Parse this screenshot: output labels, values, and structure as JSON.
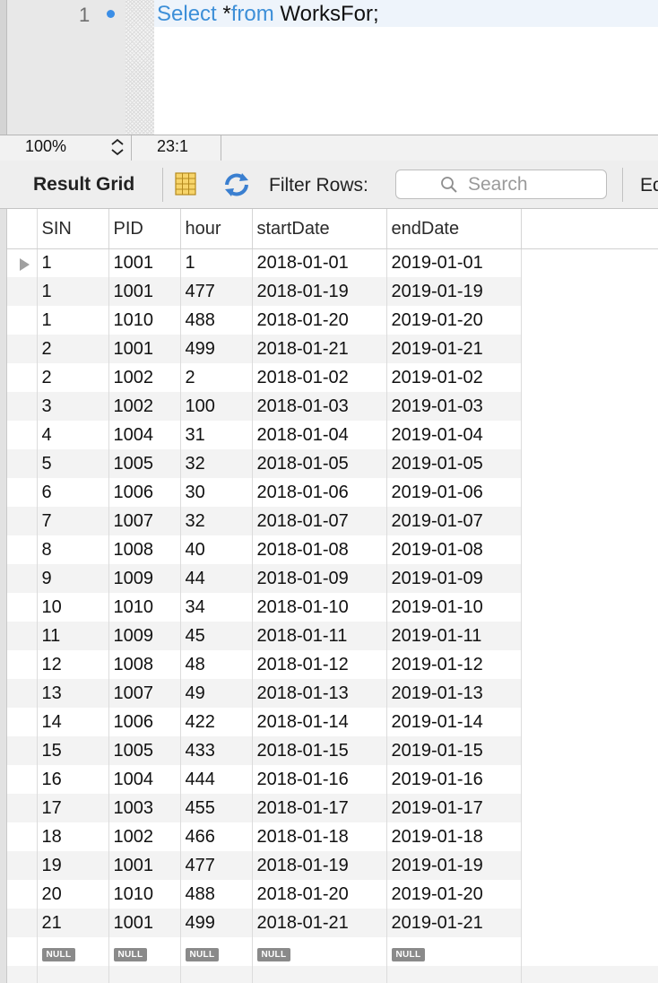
{
  "editor": {
    "line_number": "1",
    "sql": {
      "kw1": "Select",
      "mid": " *",
      "kw2": "from",
      "table": " WorksFor;"
    }
  },
  "status": {
    "zoom": "100%",
    "cursor": "23:1"
  },
  "toolbar": {
    "title": "Result Grid",
    "filter_label": "Filter Rows:",
    "search_placeholder": "Search",
    "edit_label": "Ed"
  },
  "grid": {
    "columns": [
      "SIN",
      "PID",
      "hour",
      "startDate",
      "endDate"
    ],
    "rows": [
      [
        "1",
        "1001",
        "1",
        "2018-01-01",
        "2019-01-01"
      ],
      [
        "1",
        "1001",
        "477",
        "2018-01-19",
        "2019-01-19"
      ],
      [
        "1",
        "1010",
        "488",
        "2018-01-20",
        "2019-01-20"
      ],
      [
        "2",
        "1001",
        "499",
        "2018-01-21",
        "2019-01-21"
      ],
      [
        "2",
        "1002",
        "2",
        "2018-01-02",
        "2019-01-02"
      ],
      [
        "3",
        "1002",
        "100",
        "2018-01-03",
        "2019-01-03"
      ],
      [
        "4",
        "1004",
        "31",
        "2018-01-04",
        "2019-01-04"
      ],
      [
        "5",
        "1005",
        "32",
        "2018-01-05",
        "2019-01-05"
      ],
      [
        "6",
        "1006",
        "30",
        "2018-01-06",
        "2019-01-06"
      ],
      [
        "7",
        "1007",
        "32",
        "2018-01-07",
        "2019-01-07"
      ],
      [
        "8",
        "1008",
        "40",
        "2018-01-08",
        "2019-01-08"
      ],
      [
        "9",
        "1009",
        "44",
        "2018-01-09",
        "2019-01-09"
      ],
      [
        "10",
        "1010",
        "34",
        "2018-01-10",
        "2019-01-10"
      ],
      [
        "11",
        "1009",
        "45",
        "2018-01-11",
        "2019-01-11"
      ],
      [
        "12",
        "1008",
        "48",
        "2018-01-12",
        "2019-01-12"
      ],
      [
        "13",
        "1007",
        "49",
        "2018-01-13",
        "2019-01-13"
      ],
      [
        "14",
        "1006",
        "422",
        "2018-01-14",
        "2019-01-14"
      ],
      [
        "15",
        "1005",
        "433",
        "2018-01-15",
        "2019-01-15"
      ],
      [
        "16",
        "1004",
        "444",
        "2018-01-16",
        "2019-01-16"
      ],
      [
        "17",
        "1003",
        "455",
        "2018-01-17",
        "2019-01-17"
      ],
      [
        "18",
        "1002",
        "466",
        "2018-01-18",
        "2019-01-18"
      ],
      [
        "19",
        "1001",
        "477",
        "2018-01-19",
        "2019-01-19"
      ],
      [
        "20",
        "1010",
        "488",
        "2018-01-20",
        "2019-01-20"
      ],
      [
        "21",
        "1001",
        "499",
        "2018-01-21",
        "2019-01-21"
      ]
    ],
    "null_label": "NULL",
    "selected_row": 0
  },
  "icons": {
    "row_marker": "row-arrow-icon",
    "grid": "grid-columns-icon",
    "refresh": "refresh-icon",
    "search": "search-icon",
    "zoom_stepper": "stepper-icon"
  },
  "colors": {
    "keyword": "#3d8fd8",
    "breakpoint_dot": "#3b8ee6",
    "null_badge": "#8a8a8a"
  }
}
